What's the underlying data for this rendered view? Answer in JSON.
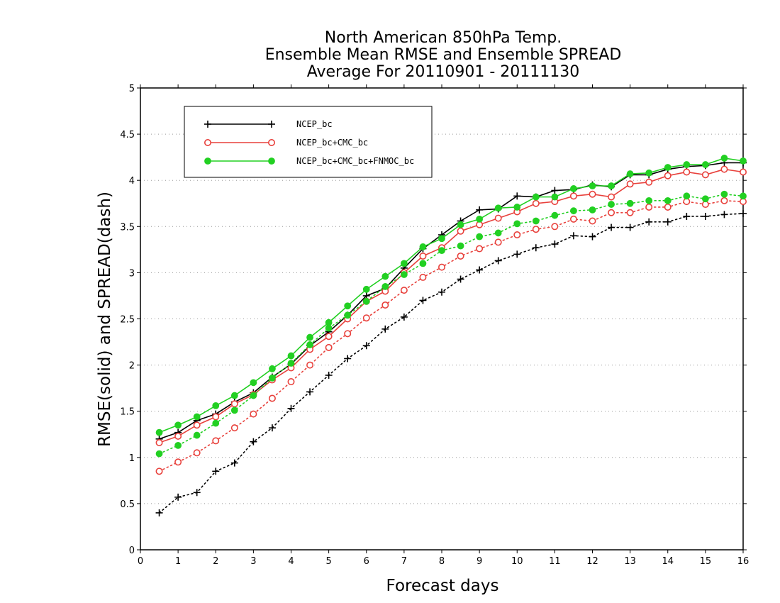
{
  "chart_data": {
    "type": "line",
    "title": [
      "North American 850hPa Temp.",
      "Ensemble Mean RMSE and Ensemble SPREAD",
      "Average For 20110901 - 20111130"
    ],
    "xlabel": "Forecast days",
    "ylabel": "RMSE(solid) and SPREAD(dash)",
    "xlim": [
      0,
      16
    ],
    "ylim": [
      0,
      5
    ],
    "xticks": [
      0,
      1,
      2,
      3,
      4,
      5,
      6,
      7,
      8,
      9,
      10,
      11,
      12,
      13,
      14,
      15,
      16
    ],
    "yticks": [
      0,
      0.5,
      1,
      1.5,
      2,
      2.5,
      3,
      3.5,
      4,
      4.5,
      5
    ],
    "xtick_labels": [
      "0",
      "1",
      "2",
      "3",
      "4",
      "5",
      "6",
      "7",
      "8",
      "9",
      "10",
      "11",
      "12",
      "13",
      "14",
      "15",
      "16"
    ],
    "ytick_labels": [
      "0",
      "0.5",
      "1",
      "1.5",
      "2",
      "2.5",
      "3",
      "3.5",
      "4",
      "4.5",
      "5"
    ],
    "grid": "horizontal dotted",
    "legend_position": "top-left",
    "x": [
      0.5,
      1,
      1.5,
      2,
      2.5,
      3,
      3.5,
      4,
      4.5,
      5,
      5.5,
      6,
      6.5,
      7,
      7.5,
      8,
      8.5,
      9,
      9.5,
      10,
      10.5,
      11,
      11.5,
      12,
      12.5,
      13,
      13.5,
      14,
      14.5,
      15,
      15.5,
      16
    ],
    "series": [
      {
        "name": "NCEP_bc",
        "color": "#000000",
        "marker": "plus",
        "rmse": [
          1.2,
          1.27,
          1.4,
          1.47,
          1.6,
          1.7,
          1.87,
          2.01,
          2.21,
          2.36,
          2.54,
          2.75,
          2.83,
          3.05,
          3.26,
          3.41,
          3.56,
          3.68,
          3.69,
          3.83,
          3.82,
          3.89,
          3.9,
          3.95,
          3.93,
          4.06,
          4.06,
          4.12,
          4.15,
          4.16,
          4.19,
          4.19
        ],
        "spread": [
          0.4,
          0.57,
          0.62,
          0.85,
          0.94,
          1.17,
          1.32,
          1.53,
          1.71,
          1.89,
          2.07,
          2.21,
          2.39,
          2.52,
          2.7,
          2.79,
          2.93,
          3.03,
          3.13,
          3.2,
          3.27,
          3.31,
          3.4,
          3.39,
          3.49,
          3.49,
          3.55,
          3.55,
          3.61,
          3.61,
          3.63,
          3.64
        ]
      },
      {
        "name": "NCEP_bc+CMC_bc",
        "color": "#e8413c",
        "marker": "circle-open",
        "rmse": [
          1.16,
          1.23,
          1.35,
          1.44,
          1.58,
          1.68,
          1.84,
          1.97,
          2.17,
          2.31,
          2.5,
          2.69,
          2.8,
          3.0,
          3.18,
          3.27,
          3.45,
          3.52,
          3.59,
          3.66,
          3.75,
          3.77,
          3.83,
          3.85,
          3.82,
          3.96,
          3.98,
          4.05,
          4.09,
          4.06,
          4.12,
          4.09
        ],
        "spread": [
          0.85,
          0.95,
          1.05,
          1.18,
          1.32,
          1.47,
          1.64,
          1.82,
          2.0,
          2.19,
          2.34,
          2.51,
          2.65,
          2.81,
          2.95,
          3.06,
          3.18,
          3.26,
          3.33,
          3.41,
          3.47,
          3.5,
          3.58,
          3.56,
          3.65,
          3.65,
          3.71,
          3.71,
          3.77,
          3.74,
          3.78,
          3.77
        ]
      },
      {
        "name": "NCEP_bc+CMC_bc+FNMOC_bc",
        "color": "#22d022",
        "marker": "circle-filled",
        "rmse": [
          1.27,
          1.35,
          1.44,
          1.56,
          1.67,
          1.81,
          1.96,
          2.1,
          2.3,
          2.46,
          2.64,
          2.82,
          2.96,
          3.1,
          3.28,
          3.37,
          3.52,
          3.58,
          3.7,
          3.71,
          3.82,
          3.82,
          3.91,
          3.94,
          3.94,
          4.07,
          4.08,
          4.14,
          4.17,
          4.17,
          4.24,
          4.21
        ],
        "spread": [
          1.04,
          1.13,
          1.24,
          1.37,
          1.51,
          1.67,
          1.86,
          2.02,
          2.22,
          2.4,
          2.54,
          2.69,
          2.85,
          2.98,
          3.1,
          3.24,
          3.29,
          3.39,
          3.43,
          3.53,
          3.56,
          3.62,
          3.67,
          3.68,
          3.74,
          3.75,
          3.78,
          3.78,
          3.83,
          3.8,
          3.85,
          3.83
        ]
      }
    ]
  }
}
